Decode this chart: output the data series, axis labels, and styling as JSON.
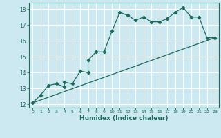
{
  "title": "",
  "xlabel": "Humidex (Indice chaleur)",
  "ylabel": "",
  "background_color": "#cce8f0",
  "grid_color": "#ffffff",
  "line_color": "#1a6b5a",
  "xlim": [
    -0.5,
    23.5
  ],
  "ylim": [
    11.8,
    18.4
  ],
  "yticks": [
    12,
    13,
    14,
    15,
    16,
    17,
    18
  ],
  "xticks": [
    0,
    1,
    2,
    3,
    4,
    5,
    6,
    7,
    8,
    9,
    10,
    11,
    12,
    13,
    14,
    15,
    16,
    17,
    18,
    19,
    20,
    21,
    22,
    23
  ],
  "series1_x": [
    0,
    1,
    2,
    3,
    4,
    4,
    5,
    6,
    7,
    7,
    8,
    9,
    10,
    11,
    12,
    13,
    14,
    15,
    16,
    17,
    18,
    19,
    20,
    21,
    22,
    23
  ],
  "series1_y": [
    12.1,
    12.6,
    13.2,
    13.3,
    13.1,
    13.4,
    13.3,
    14.1,
    14.0,
    14.8,
    15.3,
    15.3,
    16.6,
    17.8,
    17.6,
    17.3,
    17.5,
    17.2,
    17.2,
    17.4,
    17.8,
    18.1,
    17.5,
    17.5,
    16.2,
    16.2
  ],
  "series2_x": [
    0,
    23
  ],
  "series2_y": [
    12.1,
    16.2
  ]
}
